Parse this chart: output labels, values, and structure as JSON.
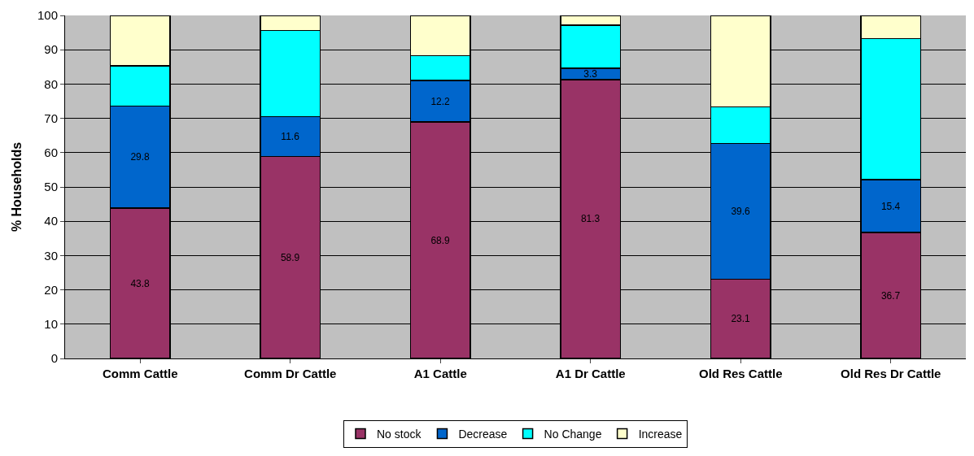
{
  "chart_data": {
    "type": "bar",
    "stacked": true,
    "ylabel": "% Households",
    "categories": [
      "Comm Cattle",
      "Comm Dr Cattle",
      "A1 Cattle",
      "A1 Dr Cattle",
      "Old Res Cattle",
      "Old Res Dr Cattle"
    ],
    "series": [
      {
        "name": "No stock",
        "color": "#993366",
        "values": [
          43.8,
          58.9,
          68.9,
          81.3,
          23.1,
          36.7
        ],
        "value_labels": [
          "43.8",
          "58.9",
          "68.9",
          "81.3",
          "23.1",
          "36.7"
        ]
      },
      {
        "name": "Decrease",
        "color": "#0066cc",
        "values": [
          29.8,
          11.6,
          12.2,
          3.3,
          39.6,
          15.4
        ],
        "value_labels": [
          "29.8",
          "11.6",
          "12.2",
          "3.3",
          "39.6",
          "15.4"
        ]
      },
      {
        "name": "No Change",
        "color": "#00ffff",
        "values": [
          11.7,
          25.1,
          7.2,
          12.6,
          10.7,
          41.2
        ]
      },
      {
        "name": "Increase",
        "color": "#ffffcc",
        "values": [
          14.7,
          4.4,
          11.7,
          2.8,
          26.6,
          6.7
        ]
      }
    ],
    "ylim": [
      0,
      100
    ],
    "yticks": [
      0,
      10,
      20,
      30,
      40,
      50,
      60,
      70,
      80,
      90,
      100
    ],
    "grid": "y",
    "legend": "bottom"
  }
}
